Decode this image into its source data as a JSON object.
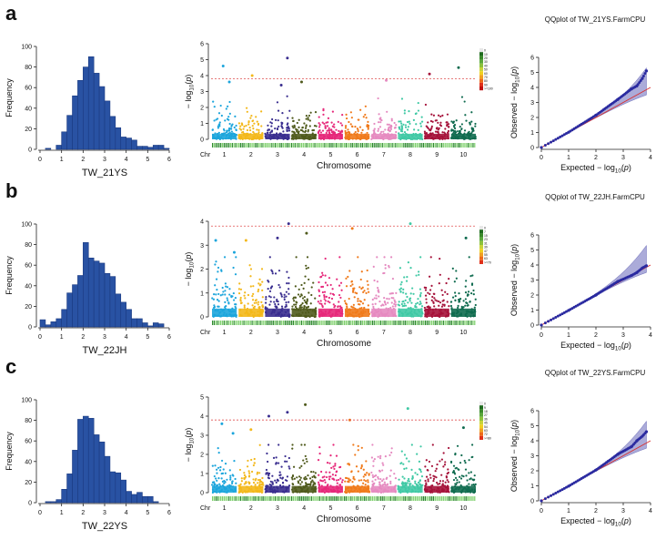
{
  "figure": {
    "colors": {
      "hist_bar": "#2952a3",
      "hist_edge": "#1a3a80",
      "threshold": "#e05050",
      "qq_points": "#2a2aa0",
      "qq_band": "#8f8fcc",
      "qq_line": "#d83030",
      "axis": "#222222"
    },
    "chromosome_colors": [
      "#1ca5dc",
      "#f3b81b",
      "#3a2e8f",
      "#4f5a1c",
      "#e6287a",
      "#f07a1b",
      "#e58ac0",
      "#40c9a5",
      "#a5123a",
      "#0f6b4f"
    ]
  },
  "chart_data": [
    {
      "panel": "a",
      "histogram": {
        "type": "bar",
        "ylabel": "Frequency",
        "xlabel": "TW_21YS",
        "xlim": [
          0,
          6
        ],
        "ylim": [
          0,
          100
        ],
        "xticks": [
          "0",
          "1",
          "2",
          "3",
          "4",
          "5",
          "6"
        ],
        "yticks": [
          "0",
          "20",
          "40",
          "60",
          "80",
          "100"
        ],
        "bin_width": 0.25,
        "bin_starts": [
          0.0,
          0.25,
          0.5,
          0.75,
          1.0,
          1.25,
          1.5,
          1.75,
          2.0,
          2.25,
          2.5,
          2.75,
          3.0,
          3.25,
          3.5,
          3.75,
          4.0,
          4.25,
          4.5,
          4.75,
          5.0,
          5.25,
          5.5,
          5.75
        ],
        "counts": [
          0,
          1,
          0,
          4,
          17,
          33,
          52,
          67,
          80,
          90,
          74,
          61,
          47,
          32,
          21,
          12,
          11,
          9,
          3,
          3,
          2,
          4,
          4,
          1
        ]
      },
      "manhattan": {
        "type": "scatter",
        "ylabel": "− log10(p)",
        "xlabel": "Chromosome",
        "chr_label": "Chr",
        "chromosomes": [
          "1",
          "2",
          "3",
          "4",
          "5",
          "6",
          "7",
          "8",
          "9",
          "10"
        ],
        "ylim": [
          0,
          6
        ],
        "yticks": [
          "0",
          "1",
          "2",
          "3",
          "4",
          "5",
          "6"
        ],
        "threshold": 3.8,
        "top_hits": [
          {
            "chr": "1",
            "pos": 0.45,
            "value": 4.6
          },
          {
            "chr": "1",
            "pos": 0.7,
            "value": 3.6
          },
          {
            "chr": "2",
            "pos": 0.55,
            "value": 4.0
          },
          {
            "chr": "3",
            "pos": 0.65,
            "value": 3.4
          },
          {
            "chr": "3",
            "pos": 0.9,
            "value": 5.1
          },
          {
            "chr": "4",
            "pos": 0.4,
            "value": 3.6
          },
          {
            "chr": "7",
            "pos": 0.6,
            "value": 3.7
          },
          {
            "chr": "9",
            "pos": 0.2,
            "value": 4.1
          },
          {
            "chr": "10",
            "pos": 0.3,
            "value": 4.5
          }
        ],
        "density_legend": [
          "0",
          "10",
          "20",
          "30",
          "40",
          "50",
          "60",
          "70",
          "80",
          "90",
          ">=100"
        ]
      },
      "qqplot": {
        "type": "scatter",
        "title": "QQplot of TW_21YS.FarmCPU",
        "xlabel": "Expected  − log10(p)",
        "ylabel": "Observed  − log10(p)",
        "xlim": [
          0,
          4
        ],
        "ylim": [
          0,
          6
        ],
        "xticks": [
          "0",
          "1",
          "2",
          "3",
          "4"
        ],
        "yticks": [
          "0",
          "1",
          "2",
          "3",
          "4",
          "5",
          "6"
        ],
        "max_expected": 3.85,
        "points": [
          {
            "x": 0.0,
            "y": 0.0
          },
          {
            "x": 1.0,
            "y": 1.02
          },
          {
            "x": 2.0,
            "y": 2.15
          },
          {
            "x": 2.8,
            "y": 3.2
          },
          {
            "x": 3.3,
            "y": 3.9
          },
          {
            "x": 3.5,
            "y": 4.1
          },
          {
            "x": 3.7,
            "y": 4.6
          },
          {
            "x": 3.85,
            "y": 5.1
          }
        ],
        "band_upper_end": 5.3,
        "band_lower_end": 3.5
      }
    },
    {
      "panel": "b",
      "histogram": {
        "type": "bar",
        "ylabel": "Frequency",
        "xlabel": "TW_22JH",
        "xlim": [
          0,
          6
        ],
        "ylim": [
          0,
          100
        ],
        "xticks": [
          "0",
          "1",
          "2",
          "3",
          "4",
          "5",
          "6"
        ],
        "yticks": [
          "0",
          "20",
          "40",
          "60",
          "80",
          "100"
        ],
        "bin_width": 0.25,
        "bin_starts": [
          0.0,
          0.25,
          0.5,
          0.75,
          1.0,
          1.25,
          1.5,
          1.75,
          2.0,
          2.25,
          2.5,
          2.75,
          3.0,
          3.25,
          3.5,
          3.75,
          4.0,
          4.25,
          4.5,
          4.75,
          5.0,
          5.25,
          5.5,
          5.75
        ],
        "counts": [
          7,
          2,
          5,
          8,
          17,
          33,
          41,
          50,
          82,
          67,
          64,
          62,
          52,
          49,
          32,
          24,
          17,
          8,
          8,
          4,
          1,
          4,
          3,
          0
        ]
      },
      "manhattan": {
        "type": "scatter",
        "ylabel": "− log10(p)",
        "xlabel": "Chromosome",
        "chr_label": "Chr",
        "chromosomes": [
          "1",
          "2",
          "3",
          "4",
          "5",
          "6",
          "7",
          "8",
          "9",
          "10"
        ],
        "ylim": [
          0,
          4
        ],
        "yticks": [
          "0",
          "1",
          "2",
          "3",
          "4"
        ],
        "threshold": 3.8,
        "top_hits": [
          {
            "chr": "1",
            "pos": 0.15,
            "value": 3.2
          },
          {
            "chr": "1",
            "pos": 0.9,
            "value": 2.7
          },
          {
            "chr": "2",
            "pos": 0.3,
            "value": 3.2
          },
          {
            "chr": "3",
            "pos": 0.5,
            "value": 3.3
          },
          {
            "chr": "3",
            "pos": 0.95,
            "value": 3.9
          },
          {
            "chr": "4",
            "pos": 0.6,
            "value": 3.5
          },
          {
            "chr": "6",
            "pos": 0.3,
            "value": 3.7
          },
          {
            "chr": "8",
            "pos": 0.5,
            "value": 3.9
          },
          {
            "chr": "10",
            "pos": 0.6,
            "value": 3.3
          }
        ],
        "density_legend": [
          "0",
          "7",
          "15",
          "23",
          "31",
          "39",
          "47",
          "55",
          "63",
          ">=70"
        ]
      },
      "qqplot": {
        "type": "scatter",
        "title": "QQplot of TW_22JH.FarmCPU",
        "xlabel": "Expected  − log10(p)",
        "ylabel": "Observed  − log10(p)",
        "xlim": [
          0,
          4
        ],
        "ylim": [
          0,
          6
        ],
        "xticks": [
          "0",
          "1",
          "2",
          "3",
          "4"
        ],
        "yticks": [
          "0",
          "1",
          "2",
          "3",
          "4",
          "5",
          "6"
        ],
        "max_expected": 3.85,
        "points": [
          {
            "x": 0.0,
            "y": 0.0
          },
          {
            "x": 1.0,
            "y": 0.98
          },
          {
            "x": 2.0,
            "y": 2.0
          },
          {
            "x": 2.8,
            "y": 2.9
          },
          {
            "x": 3.3,
            "y": 3.3
          },
          {
            "x": 3.5,
            "y": 3.5
          },
          {
            "x": 3.7,
            "y": 3.8
          },
          {
            "x": 3.85,
            "y": 3.95
          }
        ],
        "band_upper_end": 5.3,
        "band_lower_end": 3.5
      }
    },
    {
      "panel": "c",
      "histogram": {
        "type": "bar",
        "ylabel": "Frequency",
        "xlabel": "TW_22YS",
        "xlim": [
          0,
          6
        ],
        "ylim": [
          0,
          100
        ],
        "xticks": [
          "0",
          "1",
          "2",
          "3",
          "4",
          "5",
          "6"
        ],
        "yticks": [
          "0",
          "20",
          "40",
          "60",
          "80",
          "100"
        ],
        "bin_width": 0.25,
        "bin_starts": [
          0.0,
          0.25,
          0.5,
          0.75,
          1.0,
          1.25,
          1.5,
          1.75,
          2.0,
          2.25,
          2.5,
          2.75,
          3.0,
          3.25,
          3.5,
          3.75,
          4.0,
          4.25,
          4.5,
          4.75,
          5.0,
          5.25,
          5.5,
          5.75
        ],
        "counts": [
          0,
          1,
          1,
          3,
          13,
          28,
          51,
          81,
          84,
          82,
          66,
          59,
          45,
          30,
          29,
          22,
          11,
          8,
          10,
          6,
          6,
          1,
          0,
          0
        ]
      },
      "manhattan": {
        "type": "scatter",
        "ylabel": "− log10(p)",
        "xlabel": "Chromosome",
        "chr_label": "Chr",
        "chromosomes": [
          "1",
          "2",
          "3",
          "4",
          "5",
          "6",
          "7",
          "8",
          "9",
          "10"
        ],
        "ylim": [
          0,
          5
        ],
        "yticks": [
          "0",
          "1",
          "2",
          "3",
          "4",
          "5"
        ],
        "threshold": 3.8,
        "top_hits": [
          {
            "chr": "1",
            "pos": 0.4,
            "value": 3.6
          },
          {
            "chr": "1",
            "pos": 0.85,
            "value": 3.1
          },
          {
            "chr": "2",
            "pos": 0.5,
            "value": 3.3
          },
          {
            "chr": "3",
            "pos": 0.15,
            "value": 4.0
          },
          {
            "chr": "3",
            "pos": 0.9,
            "value": 4.2
          },
          {
            "chr": "4",
            "pos": 0.55,
            "value": 4.6
          },
          {
            "chr": "6",
            "pos": 0.2,
            "value": 3.8
          },
          {
            "chr": "8",
            "pos": 0.4,
            "value": 4.4
          },
          {
            "chr": "10",
            "pos": 0.5,
            "value": 3.4
          }
        ],
        "density_legend": [
          "0",
          "9",
          "18",
          "27",
          "36",
          "45",
          "54",
          "63",
          "72",
          ">=80"
        ]
      },
      "qqplot": {
        "type": "scatter",
        "title": "QQplot of TW_22YS.FarmCPU",
        "xlabel": "Expected  − log10(p)",
        "ylabel": "Observed  − log10(p)",
        "xlim": [
          0,
          4
        ],
        "ylim": [
          0,
          6
        ],
        "xticks": [
          "0",
          "1",
          "2",
          "3",
          "4"
        ],
        "yticks": [
          "0",
          "1",
          "2",
          "3",
          "4",
          "5",
          "6"
        ],
        "max_expected": 3.85,
        "points": [
          {
            "x": 0.0,
            "y": 0.0
          },
          {
            "x": 1.0,
            "y": 0.98
          },
          {
            "x": 2.0,
            "y": 2.05
          },
          {
            "x": 2.8,
            "y": 3.1
          },
          {
            "x": 3.3,
            "y": 3.6
          },
          {
            "x": 3.5,
            "y": 4.0
          },
          {
            "x": 3.7,
            "y": 4.3
          },
          {
            "x": 3.85,
            "y": 4.6
          }
        ],
        "band_upper_end": 5.3,
        "band_lower_end": 3.5
      }
    }
  ]
}
